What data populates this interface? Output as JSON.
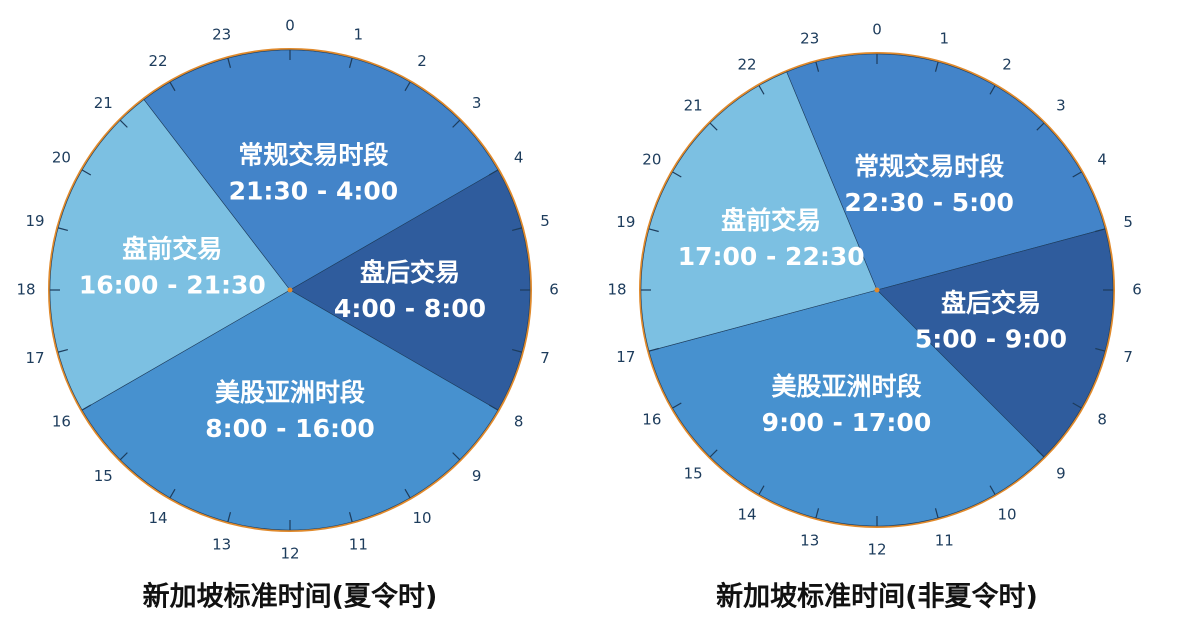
{
  "chart_data": [
    {
      "type": "clock",
      "title": "新加坡标准时间(夏令时)",
      "xlim": [
        0,
        24
      ],
      "xticks": [
        0,
        1,
        2,
        3,
        4,
        5,
        6,
        7,
        8,
        9,
        10,
        11,
        12,
        13,
        14,
        15,
        16,
        17,
        18,
        19,
        20,
        21,
        22,
        23
      ],
      "series": [
        {
          "name": "常规交易时段",
          "label": "21:30 - 4:00",
          "start": 21.5,
          "end": 4,
          "color": "#4384c9"
        },
        {
          "name": "盘后交易",
          "label": "4:00 - 8:00",
          "start": 4,
          "end": 8,
          "color": "#2f5c9d"
        },
        {
          "name": "美股亚洲时段",
          "label": "8:00 - 16:00",
          "start": 8,
          "end": 16,
          "color": "#4791cf"
        },
        {
          "name": "盘前交易",
          "label": "16:00 - 21:30",
          "start": 16,
          "end": 21.5,
          "color": "#7cc0e2"
        }
      ]
    },
    {
      "type": "clock",
      "title": "新加坡标准时间(非夏令时)",
      "xlim": [
        0,
        24
      ],
      "xticks": [
        0,
        1,
        2,
        3,
        4,
        5,
        6,
        7,
        8,
        9,
        10,
        11,
        12,
        13,
        14,
        15,
        16,
        17,
        18,
        19,
        20,
        21,
        22,
        23
      ],
      "series": [
        {
          "name": "常规交易时段",
          "label": "22:30 - 5:00",
          "start": 22.5,
          "end": 5,
          "color": "#4384c9"
        },
        {
          "name": "盘后交易",
          "label": "5:00 - 9:00",
          "start": 5,
          "end": 9,
          "color": "#2f5c9d"
        },
        {
          "name": "美股亚洲时段",
          "label": "9:00 - 17:00",
          "start": 9,
          "end": 17,
          "color": "#4791cf"
        },
        {
          "name": "盘前交易",
          "label": "17:00 - 22:30",
          "start": 17,
          "end": 22.5,
          "color": "#7cc0e2"
        }
      ]
    }
  ]
}
